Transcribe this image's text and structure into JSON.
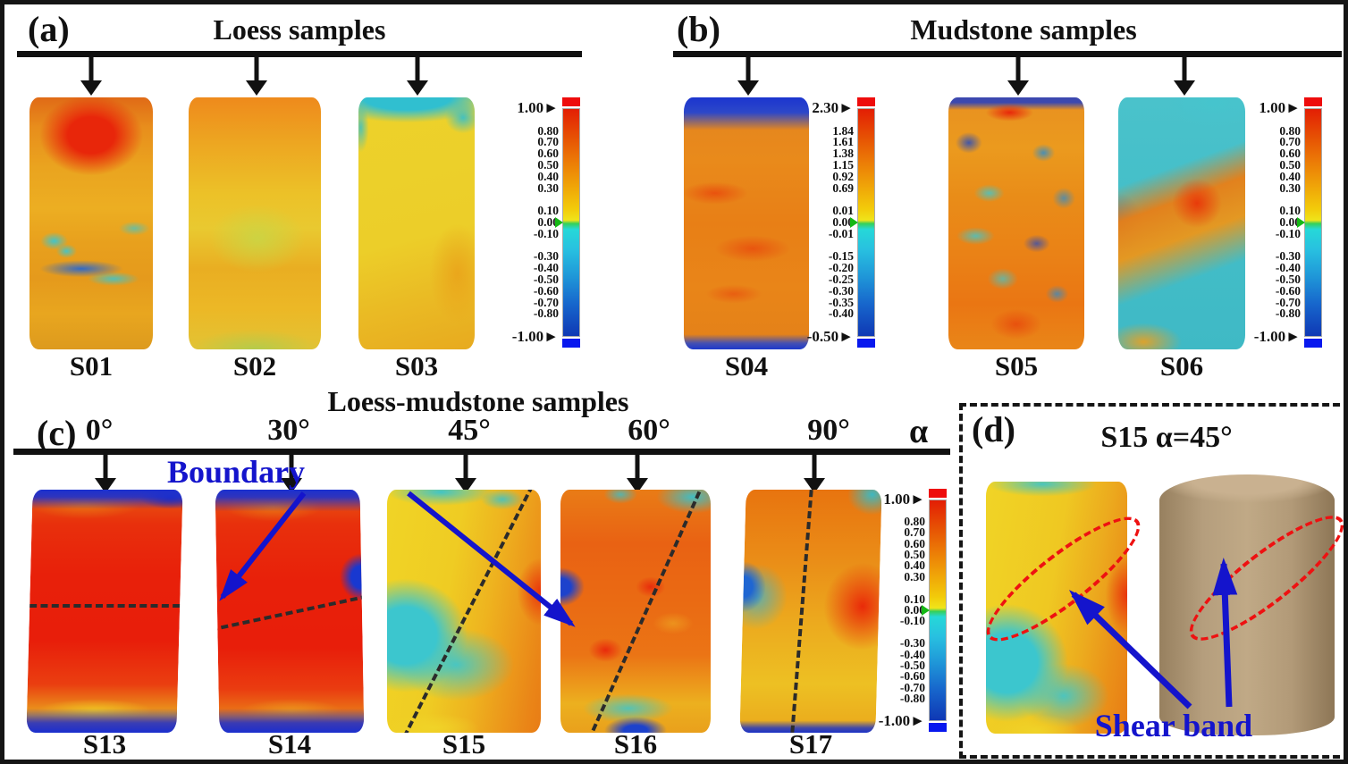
{
  "panel_a": {
    "label": "(a)",
    "title": "Loess samples",
    "samples": [
      "S01",
      "S02",
      "S03"
    ]
  },
  "panel_b": {
    "label": "(b)",
    "title": "Mudstone samples",
    "samples": [
      "S04",
      "S05",
      "S06"
    ]
  },
  "panel_c": {
    "label": "(c)",
    "title": "Loess-mudstone samples",
    "angle_labels": [
      "0°",
      "30°",
      "45°",
      "60°",
      "90°"
    ],
    "alpha_label": "α",
    "boundary_annotation": "Boundary",
    "samples": [
      "S13",
      "S14",
      "S15",
      "S16",
      "S17"
    ]
  },
  "panel_d": {
    "label": "(d)",
    "title": "S15 α=45°",
    "shear_annotation": "Shear band"
  },
  "colorbars": {
    "standard": {
      "max": "1.00",
      "min": "-1.00",
      "ticks": [
        "1.00",
        "0.80",
        "0.70",
        "0.60",
        "0.50",
        "0.40",
        "0.30",
        "0.10",
        "0.00",
        "-0.10",
        "-0.30",
        "-0.40",
        "-0.50",
        "-0.60",
        "-0.70",
        "-0.80",
        "-1.00"
      ]
    },
    "mudstone": {
      "max": "2.30",
      "min": "-0.50",
      "ticks": [
        "2.30",
        "1.84",
        "1.61",
        "1.38",
        "1.15",
        "0.92",
        "0.69",
        "0.01",
        "0.00",
        "-0.01",
        "-0.15",
        "-0.20",
        "-0.25",
        "-0.30",
        "-0.35",
        "-0.40",
        "-0.50"
      ]
    }
  },
  "colors": {
    "annotation_blue": "#1414cc",
    "shear_band_dash_red": "#ee1111",
    "colormap_max_red": "#e31e04",
    "colormap_zero_green": "#35d05a",
    "colormap_min_blue": "#0f38b4"
  }
}
